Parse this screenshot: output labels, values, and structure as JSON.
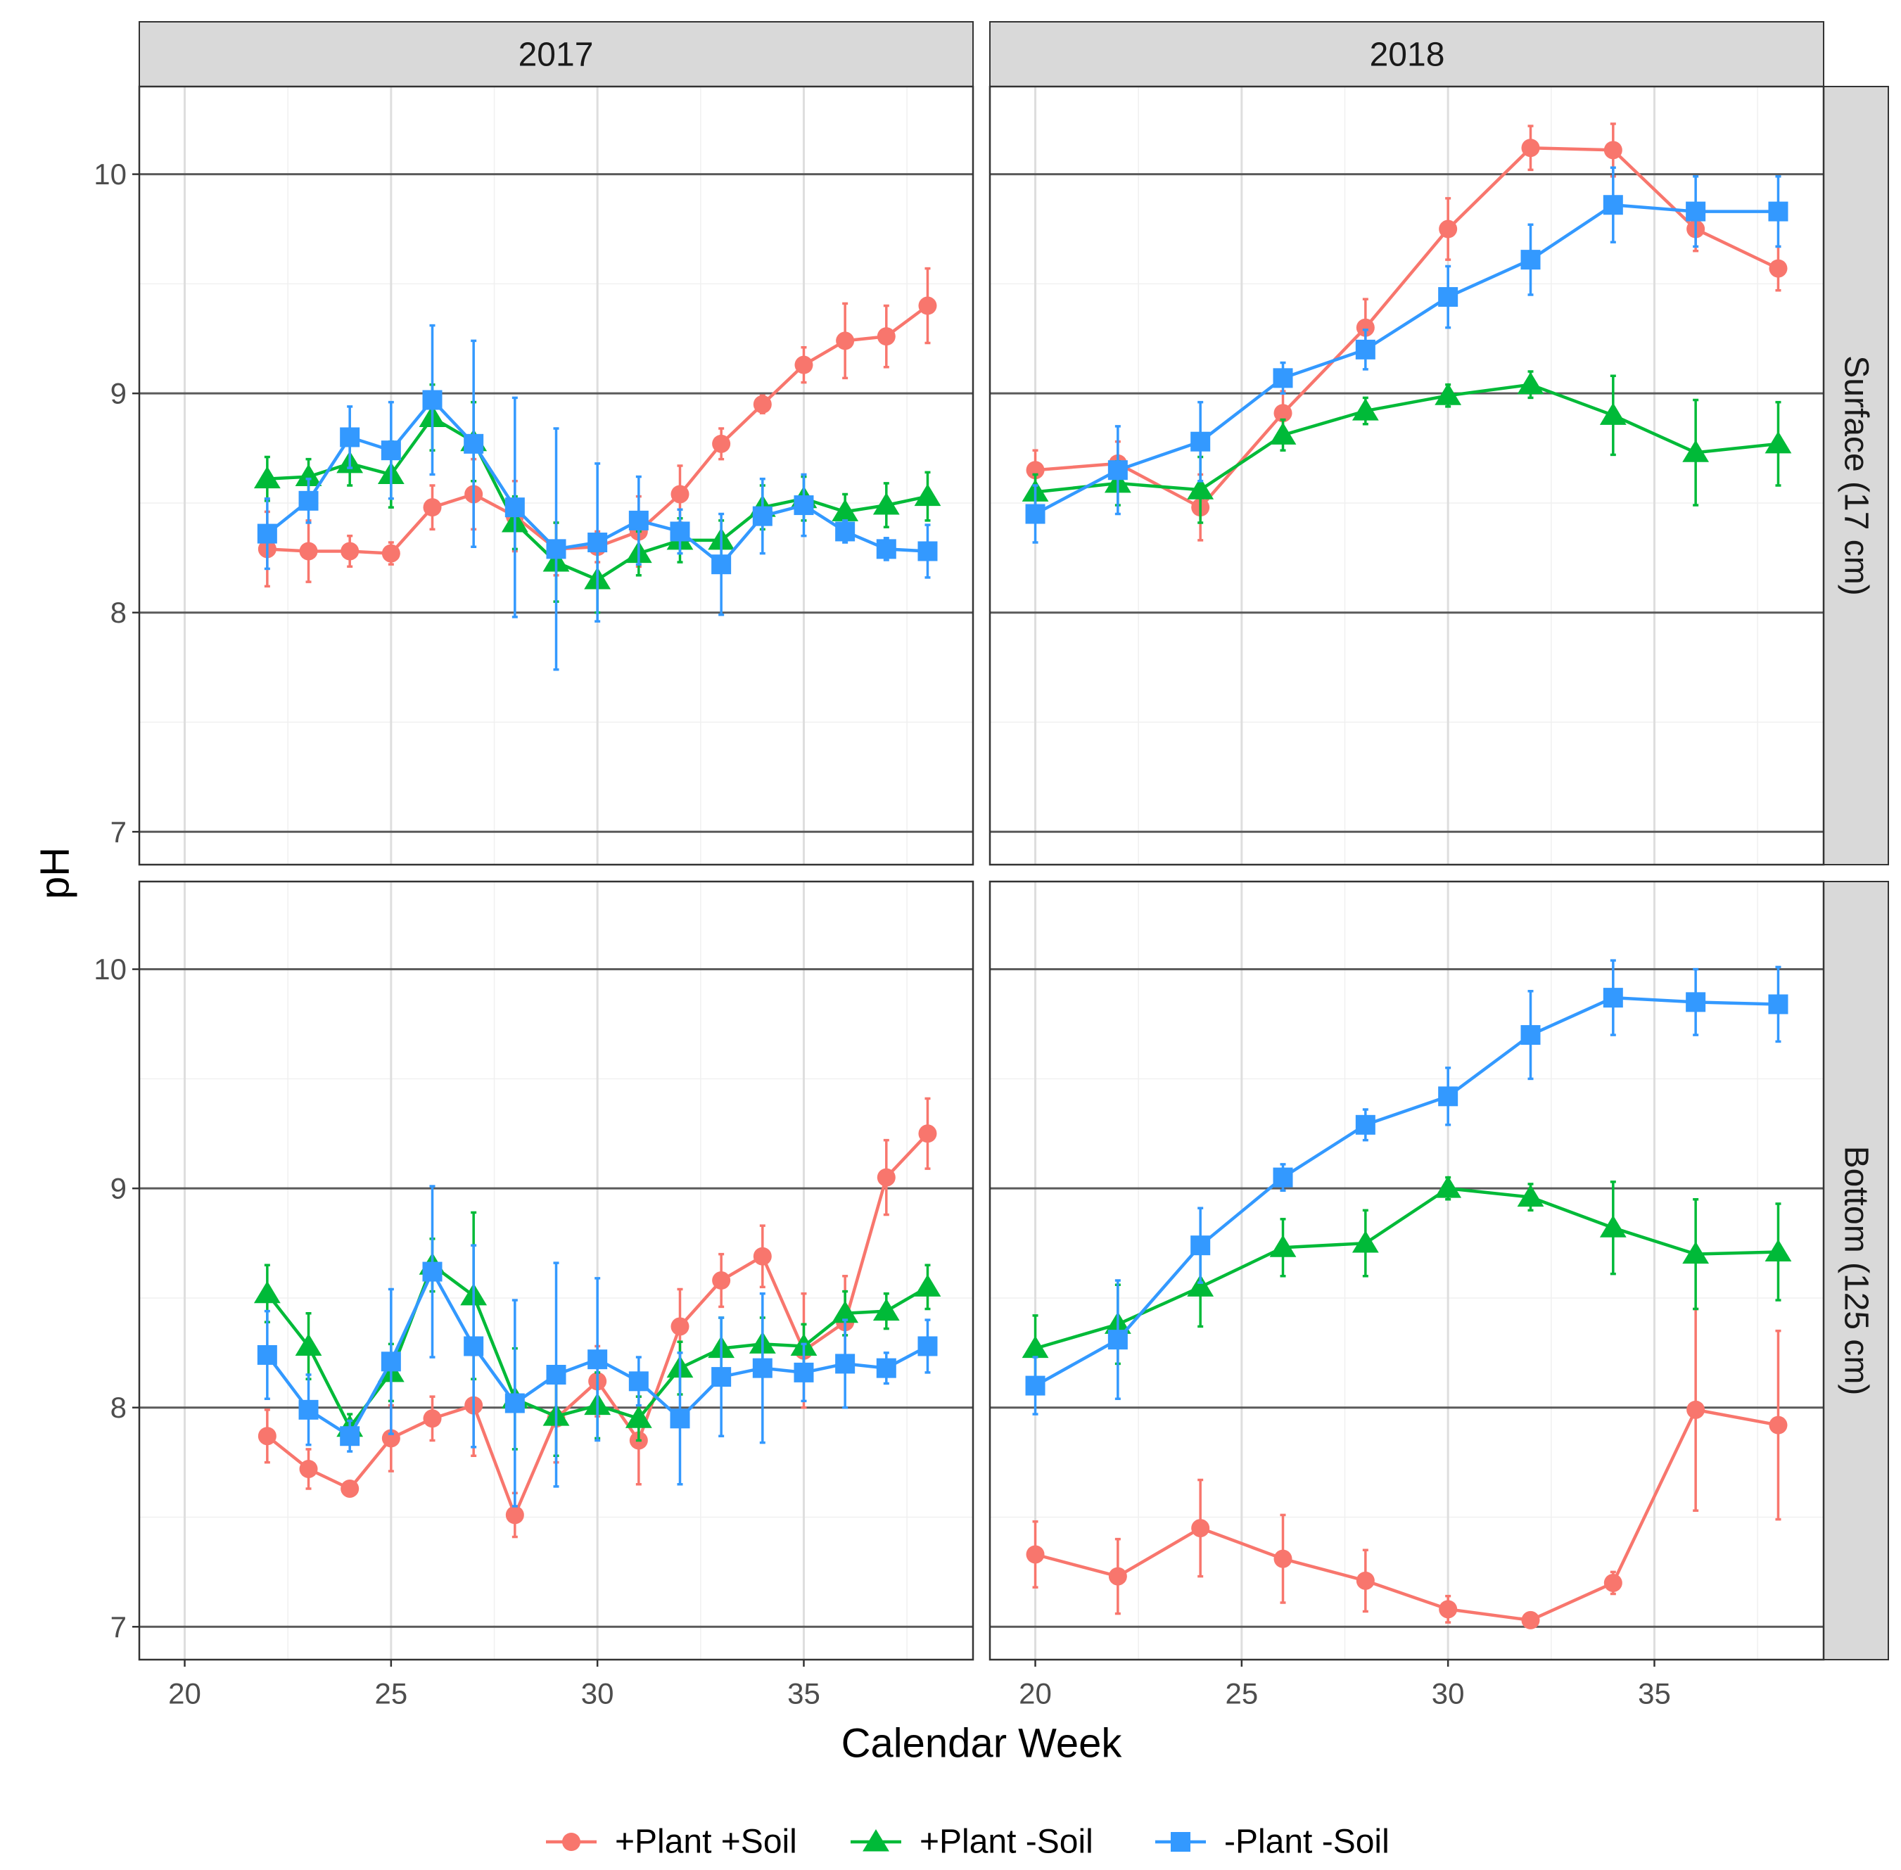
{
  "chart_data": {
    "type": "line",
    "facets": {
      "columns": [
        "2017",
        "2018"
      ],
      "rows": [
        "Surface (17 cm)",
        "Bottom (125 cm)"
      ]
    },
    "xlabel": "Calendar Week",
    "ylabel": "pH",
    "xlim": [
      18.9,
      39.1
    ],
    "ylim": [
      6.85,
      10.4
    ],
    "x_ticks": [
      20,
      25,
      30,
      35
    ],
    "x_tick_labels": [
      "20",
      "25",
      "30",
      "35"
    ],
    "y_ticks": [
      7,
      8,
      9,
      10
    ],
    "y_tick_labels": [
      "7",
      "8",
      "9",
      "10"
    ],
    "legend_position": "bottom",
    "series": [
      {
        "name": "+Plant +Soil",
        "color": "#F8766D",
        "marker": "circle"
      },
      {
        "name": "+Plant -Soil",
        "color": "#00BA38",
        "marker": "triangle"
      },
      {
        "name": "-Plant -Soil",
        "color": "#3399FF",
        "marker": "square"
      }
    ],
    "panels": [
      {
        "column": "2017",
        "row": "Surface (17 cm)",
        "series": [
          {
            "name": "+Plant +Soil",
            "x": [
              22,
              23,
              24,
              25,
              26,
              27,
              28,
              29,
              30,
              31,
              32,
              33,
              34,
              35,
              36,
              37,
              38
            ],
            "y": [
              8.29,
              8.28,
              8.28,
              8.27,
              8.48,
              8.54,
              8.44,
              8.29,
              8.3,
              8.37,
              8.54,
              8.77,
              8.95,
              9.13,
              9.24,
              9.26,
              9.4
            ],
            "err": [
              0.17,
              0.14,
              0.07,
              0.05,
              0.1,
              0.16,
              0.16,
              0.12,
              0.07,
              0.16,
              0.13,
              0.07,
              0.04,
              0.08,
              0.17,
              0.14,
              0.17
            ]
          },
          {
            "name": "+Plant -Soil",
            "x": [
              22,
              23,
              24,
              25,
              26,
              27,
              28,
              29,
              30,
              31,
              32,
              33,
              34,
              35,
              36,
              37,
              38
            ],
            "y": [
              8.61,
              8.62,
              8.68,
              8.63,
              8.89,
              8.78,
              8.41,
              8.23,
              8.15,
              8.27,
              8.33,
              8.33,
              8.48,
              8.52,
              8.46,
              8.49,
              8.53
            ],
            "err": [
              0.1,
              0.08,
              0.1,
              0.15,
              0.15,
              0.18,
              0.12,
              0.18,
              0.15,
              0.1,
              0.1,
              0.09,
              0.1,
              0.1,
              0.08,
              0.1,
              0.11
            ]
          },
          {
            "name": "-Plant -Soil",
            "x": [
              22,
              23,
              24,
              25,
              26,
              27,
              28,
              29,
              30,
              31,
              32,
              33,
              34,
              35,
              36,
              37,
              38
            ],
            "y": [
              8.36,
              8.51,
              8.8,
              8.74,
              8.97,
              8.77,
              8.48,
              8.29,
              8.32,
              8.42,
              8.37,
              8.22,
              8.44,
              8.49,
              8.37,
              8.29,
              8.28
            ],
            "err": [
              0.16,
              0.1,
              0.14,
              0.22,
              0.34,
              0.47,
              0.5,
              0.55,
              0.36,
              0.2,
              0.1,
              0.23,
              0.17,
              0.14,
              0.05,
              0.05,
              0.12
            ]
          }
        ]
      },
      {
        "column": "2018",
        "row": "Surface (17 cm)",
        "series": [
          {
            "name": "+Plant +Soil",
            "x": [
              20,
              22,
              24,
              26,
              28,
              30,
              32,
              34,
              36,
              38
            ],
            "y": [
              8.65,
              8.68,
              8.48,
              8.91,
              9.3,
              9.75,
              10.12,
              10.11,
              9.75,
              9.57
            ],
            "err": [
              0.09,
              0.1,
              0.15,
              0.1,
              0.13,
              0.14,
              0.1,
              0.12,
              0.1,
              0.1
            ]
          },
          {
            "name": "+Plant -Soil",
            "x": [
              20,
              22,
              24,
              26,
              28,
              30,
              32,
              34,
              36,
              38
            ],
            "y": [
              8.55,
              8.59,
              8.56,
              8.81,
              8.92,
              8.99,
              9.04,
              8.9,
              8.73,
              8.77
            ],
            "err": [
              0.08,
              0.1,
              0.15,
              0.07,
              0.06,
              0.05,
              0.06,
              0.18,
              0.24,
              0.19
            ]
          },
          {
            "name": "-Plant -Soil",
            "x": [
              20,
              22,
              24,
              26,
              28,
              30,
              32,
              34,
              36,
              38
            ],
            "y": [
              8.45,
              8.65,
              8.78,
              9.07,
              9.2,
              9.44,
              9.61,
              9.86,
              9.83,
              9.83
            ],
            "err": [
              0.13,
              0.2,
              0.18,
              0.07,
              0.09,
              0.14,
              0.16,
              0.17,
              0.16,
              0.16
            ]
          }
        ]
      },
      {
        "column": "2017",
        "row": "Bottom (125 cm)",
        "series": [
          {
            "name": "+Plant +Soil",
            "x": [
              22,
              23,
              24,
              25,
              26,
              27,
              28,
              29,
              30,
              31,
              32,
              33,
              34,
              35,
              36,
              37,
              38
            ],
            "y": [
              7.87,
              7.72,
              7.63,
              7.86,
              7.95,
              8.01,
              7.51,
              7.95,
              8.12,
              7.85,
              8.37,
              8.58,
              8.69,
              8.26,
              8.39,
              9.05,
              9.25
            ],
            "err": [
              0.12,
              0.09,
              0.03,
              0.15,
              0.1,
              0.23,
              0.1,
              0.2,
              0.16,
              0.2,
              0.17,
              0.12,
              0.14,
              0.26,
              0.21,
              0.17,
              0.16
            ]
          },
          {
            "name": "+Plant -Soil",
            "x": [
              22,
              23,
              24,
              25,
              26,
              27,
              28,
              29,
              30,
              31,
              32,
              33,
              34,
              35,
              36,
              37,
              38
            ],
            "y": [
              8.52,
              8.28,
              7.91,
              8.16,
              8.65,
              8.51,
              8.04,
              7.96,
              8.01,
              7.95,
              8.18,
              8.27,
              8.29,
              8.28,
              8.43,
              8.44,
              8.55
            ],
            "err": [
              0.13,
              0.15,
              0.06,
              0.13,
              0.12,
              0.38,
              0.23,
              0.18,
              0.15,
              0.1,
              0.12,
              0.14,
              0.12,
              0.1,
              0.1,
              0.08,
              0.1
            ]
          },
          {
            "name": "-Plant -Soil",
            "x": [
              22,
              23,
              24,
              25,
              26,
              27,
              28,
              29,
              30,
              31,
              32,
              33,
              34,
              35,
              36,
              37,
              38
            ],
            "y": [
              8.24,
              7.99,
              7.87,
              8.21,
              8.62,
              8.28,
              8.02,
              8.15,
              8.22,
              8.12,
              7.95,
              8.14,
              8.18,
              8.16,
              8.2,
              8.18,
              8.28
            ],
            "err": [
              0.2,
              0.16,
              0.07,
              0.33,
              0.39,
              0.46,
              0.47,
              0.51,
              0.37,
              0.11,
              0.3,
              0.27,
              0.34,
              0.13,
              0.2,
              0.07,
              0.12
            ]
          }
        ]
      },
      {
        "column": "2018",
        "row": "Bottom (125 cm)",
        "series": [
          {
            "name": "+Plant +Soil",
            "x": [
              20,
              22,
              24,
              26,
              28,
              30,
              32,
              34,
              36,
              38
            ],
            "y": [
              7.33,
              7.23,
              7.45,
              7.31,
              7.21,
              7.08,
              7.03,
              7.2,
              7.99,
              7.92
            ],
            "err": [
              0.15,
              0.17,
              0.22,
              0.2,
              0.14,
              0.06,
              0.03,
              0.05,
              0.46,
              0.43
            ]
          },
          {
            "name": "+Plant -Soil",
            "x": [
              20,
              22,
              24,
              26,
              28,
              30,
              32,
              34,
              36,
              38
            ],
            "y": [
              8.27,
              8.38,
              8.55,
              8.73,
              8.75,
              9.0,
              8.96,
              8.82,
              8.7,
              8.71
            ],
            "err": [
              0.15,
              0.18,
              0.18,
              0.13,
              0.15,
              0.05,
              0.06,
              0.21,
              0.25,
              0.22
            ]
          },
          {
            "name": "-Plant -Soil",
            "x": [
              20,
              22,
              24,
              26,
              28,
              30,
              32,
              34,
              36,
              38
            ],
            "y": [
              8.1,
              8.31,
              8.74,
              9.05,
              9.29,
              9.42,
              9.7,
              9.87,
              9.85,
              9.84
            ],
            "err": [
              0.13,
              0.27,
              0.17,
              0.06,
              0.07,
              0.13,
              0.2,
              0.17,
              0.15,
              0.17
            ]
          }
        ]
      }
    ]
  }
}
